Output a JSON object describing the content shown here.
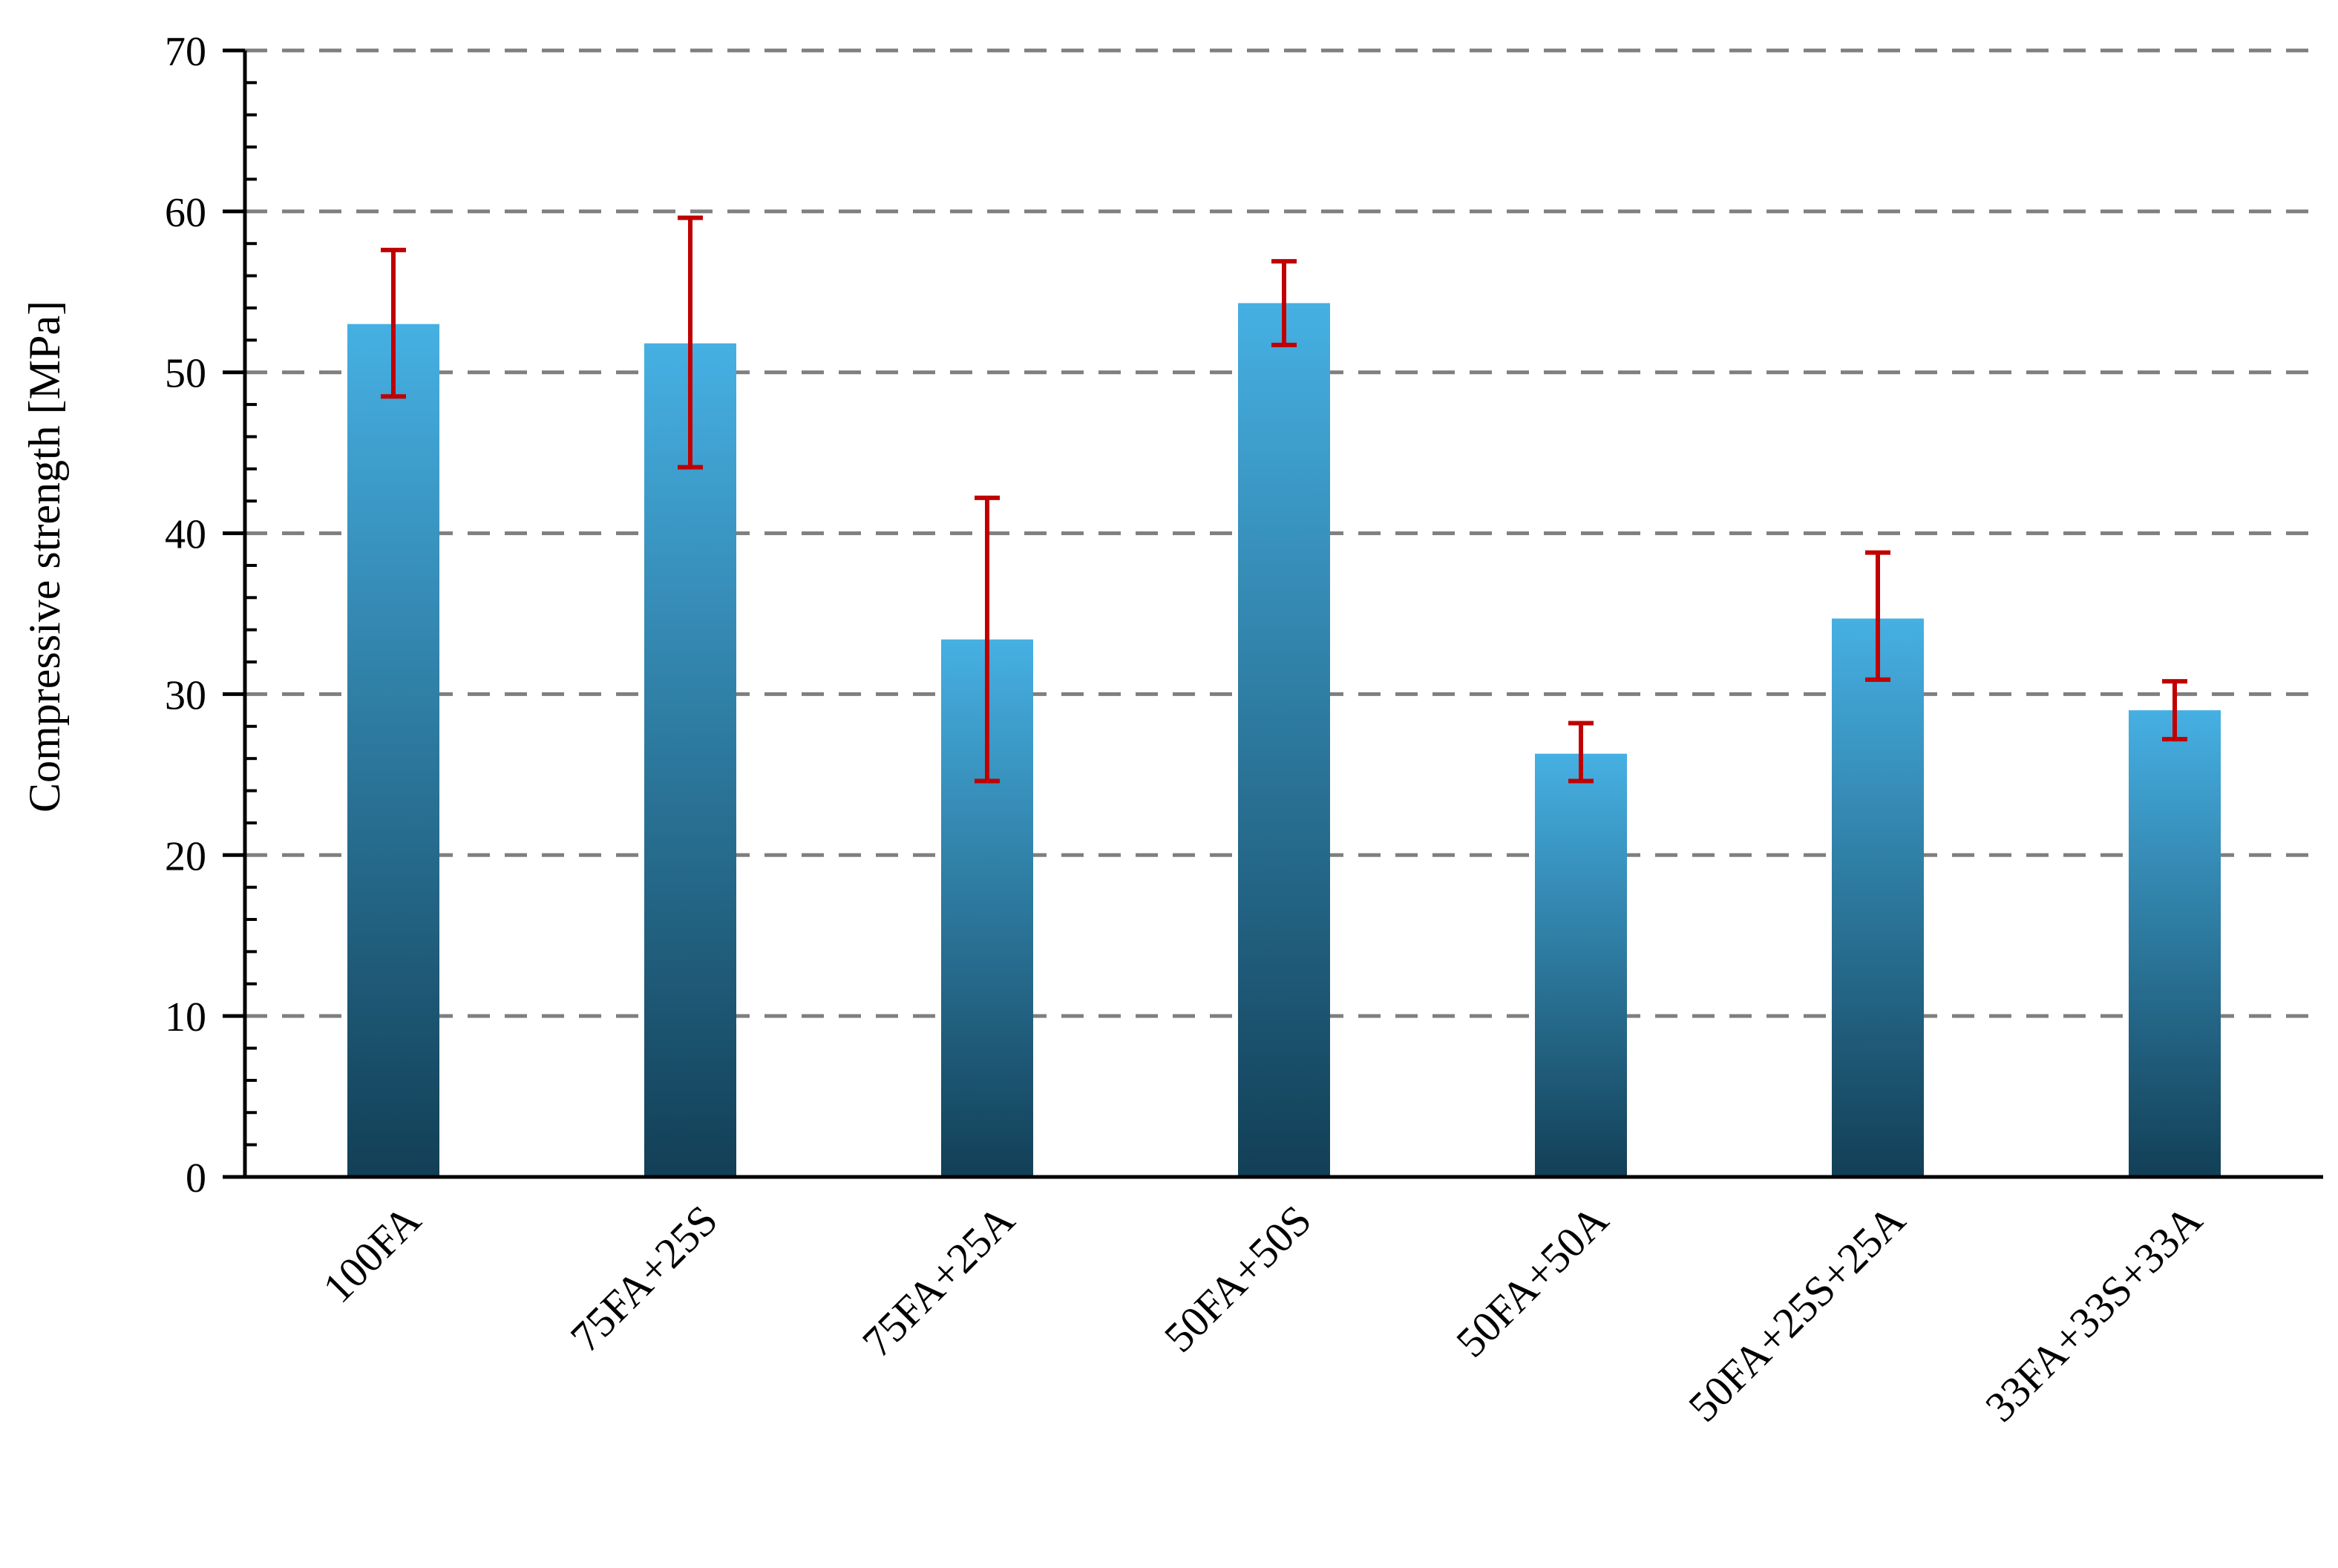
{
  "chart_data": {
    "type": "bar",
    "title": "",
    "xlabel": "",
    "ylabel": "Compressive strength [MPa]",
    "ylim": [
      0,
      70
    ],
    "yticks": [
      0,
      10,
      20,
      30,
      40,
      50,
      60,
      70
    ],
    "grid": true,
    "categories": [
      "100FA",
      "75FA+25S",
      "75FA+25A",
      "50FA+50S",
      "50FA+50A",
      "50FA+25S+25A",
      "33FA+33S+33A"
    ],
    "values": [
      53.0,
      51.8,
      33.4,
      54.3,
      26.3,
      34.7,
      29.0
    ],
    "error_low": [
      48.5,
      44.1,
      24.6,
      51.7,
      24.6,
      30.9,
      27.2
    ],
    "error_high": [
      57.6,
      59.6,
      42.2,
      56.9,
      28.2,
      38.8,
      30.8
    ],
    "colors": {
      "bar_top": "#46b0e3",
      "bar_bottom": "#123f56",
      "error_bar": "#c00000",
      "grid": "#7f7f7f",
      "axis": "#000000"
    }
  }
}
